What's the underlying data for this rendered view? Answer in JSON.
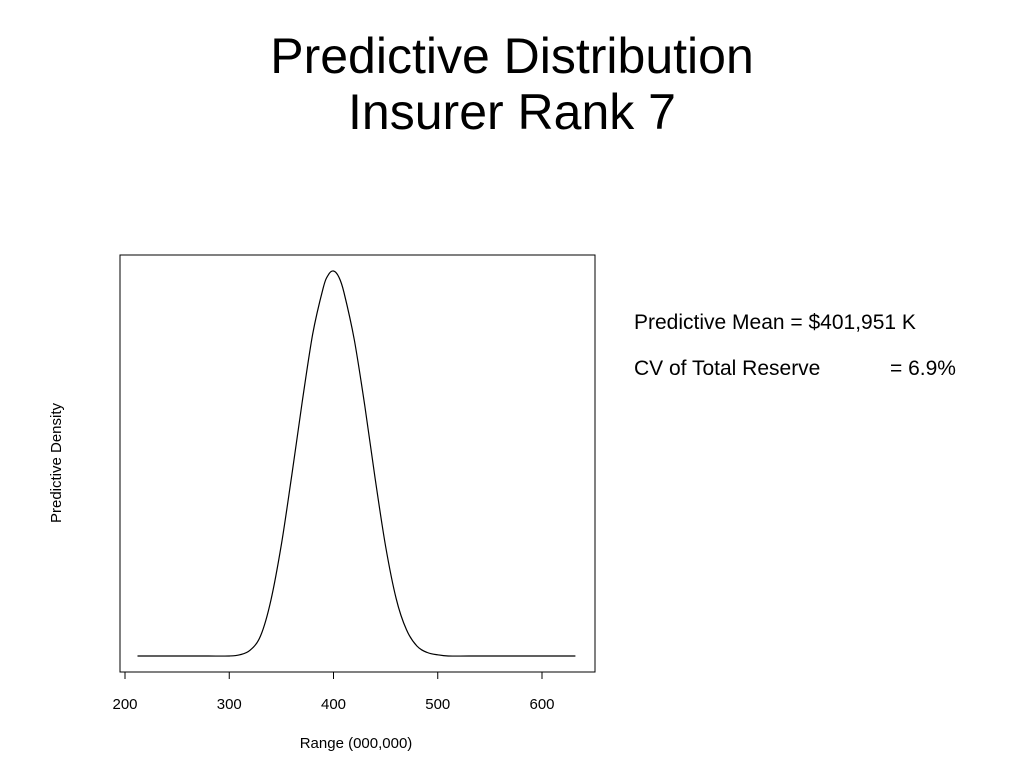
{
  "slide": {
    "title_line1": "Predictive Distribution",
    "title_line2": "Insurer Rank 7"
  },
  "stats": {
    "mean_text": "Predictive Mean = $401,951 K",
    "cv_label": "CV of Total Reserve",
    "cv_value": "= 6.9%"
  },
  "chart_data": {
    "type": "line",
    "xlabel": "Range (000,000)",
    "ylabel": "Predictive Density",
    "xlim": [
      200,
      640
    ],
    "xticks": [
      200,
      300,
      400,
      500,
      600
    ],
    "yticks_shown": false,
    "grid": false,
    "series": [
      {
        "x": [
          212,
          240,
          260,
          280,
          300,
          310,
          320,
          330,
          340,
          350,
          360,
          370,
          380,
          390,
          395,
          400,
          405,
          410,
          420,
          430,
          440,
          450,
          460,
          470,
          480,
          490,
          500,
          510,
          530,
          560,
          600,
          632
        ],
        "y": [
          0.0,
          0.0,
          0.0,
          0.0,
          0.0,
          0.003,
          0.015,
          0.052,
          0.145,
          0.29,
          0.47,
          0.66,
          0.835,
          0.955,
          0.99,
          1.0,
          0.985,
          0.945,
          0.82,
          0.65,
          0.46,
          0.285,
          0.15,
          0.068,
          0.026,
          0.009,
          0.003,
          0.0,
          0.0,
          0.0,
          0.0,
          0.0
        ]
      }
    ]
  }
}
